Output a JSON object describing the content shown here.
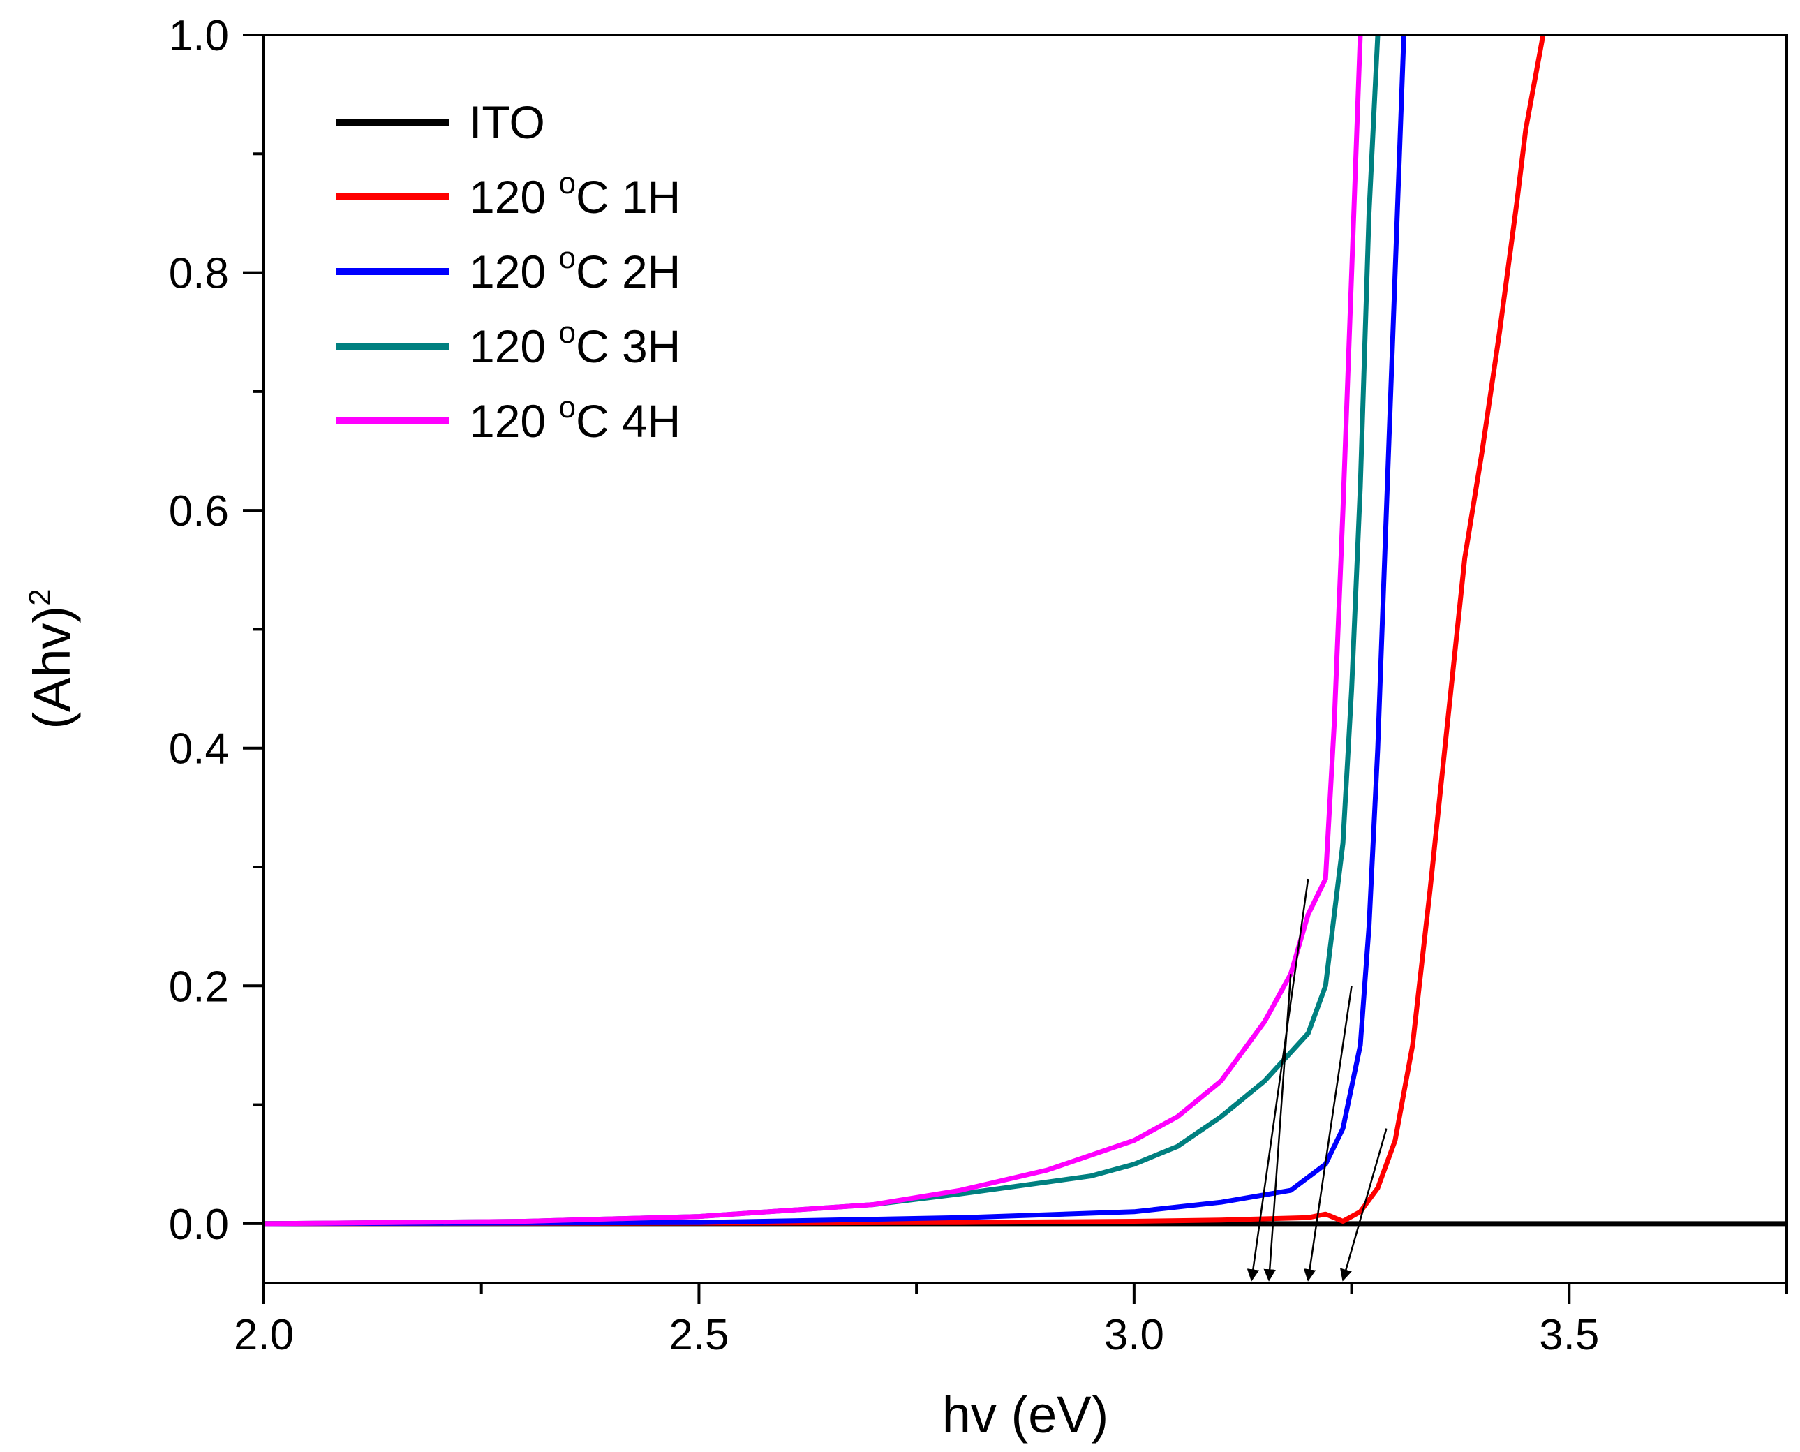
{
  "chart_data": {
    "type": "line",
    "title": "",
    "xlabel": "hv (eV)",
    "ylabel": "(Ahv)",
    "ylabel_superscript": "2",
    "xlim": [
      2.0,
      3.75
    ],
    "ylim": [
      -0.05,
      1.0
    ],
    "xticks": [
      {
        "value": 2.0,
        "label": "2.0"
      },
      {
        "value": 2.5,
        "label": "2.5"
      },
      {
        "value": 3.0,
        "label": "3.0"
      },
      {
        "value": 3.5,
        "label": "3.5"
      }
    ],
    "yticks": [
      {
        "value": 0.0,
        "label": "0.0"
      },
      {
        "value": 0.2,
        "label": "0.2"
      },
      {
        "value": 0.4,
        "label": "0.4"
      },
      {
        "value": 0.6,
        "label": "0.6"
      },
      {
        "value": 0.8,
        "label": "0.8"
      },
      {
        "value": 1.0,
        "label": "1.0"
      }
    ],
    "x_minor_ticks": [
      2.25,
      2.75,
      3.25,
      3.75
    ],
    "y_minor_ticks": [
      0.1,
      0.3,
      0.5,
      0.7,
      0.9
    ],
    "legend_position": "top-left",
    "series": [
      {
        "name": "ITO",
        "label_prefix": "ITO",
        "label_unit": "",
        "label_suffix": "",
        "color": "#000000",
        "points": [
          [
            2.0,
            0.0
          ],
          [
            3.2,
            0.0
          ],
          [
            3.75,
            0.0
          ]
        ]
      },
      {
        "name": "120 °C 1H",
        "label_prefix": "120 ",
        "label_unit": "o",
        "label_suffix": "C 1H",
        "color": "#ff0000",
        "points": [
          [
            2.0,
            0.0
          ],
          [
            2.5,
            0.0005
          ],
          [
            2.8,
            0.001
          ],
          [
            3.0,
            0.002
          ],
          [
            3.1,
            0.003
          ],
          [
            3.2,
            0.005
          ],
          [
            3.22,
            0.008
          ],
          [
            3.24,
            0.002
          ],
          [
            3.26,
            0.01
          ],
          [
            3.28,
            0.03
          ],
          [
            3.3,
            0.07
          ],
          [
            3.32,
            0.15
          ],
          [
            3.34,
            0.28
          ],
          [
            3.36,
            0.42
          ],
          [
            3.38,
            0.56
          ],
          [
            3.4,
            0.65
          ],
          [
            3.42,
            0.75
          ],
          [
            3.44,
            0.86
          ],
          [
            3.45,
            0.92
          ],
          [
            3.47,
            1.0
          ]
        ]
      },
      {
        "name": "120 °C 2H",
        "label_prefix": "120 ",
        "label_unit": "o",
        "label_suffix": "C 2H",
        "color": "#0000ff",
        "points": [
          [
            2.0,
            0.0
          ],
          [
            2.5,
            0.001
          ],
          [
            2.8,
            0.005
          ],
          [
            3.0,
            0.01
          ],
          [
            3.1,
            0.018
          ],
          [
            3.18,
            0.028
          ],
          [
            3.22,
            0.05
          ],
          [
            3.24,
            0.08
          ],
          [
            3.26,
            0.15
          ],
          [
            3.27,
            0.25
          ],
          [
            3.28,
            0.4
          ],
          [
            3.29,
            0.6
          ],
          [
            3.3,
            0.8
          ],
          [
            3.31,
            1.0
          ]
        ]
      },
      {
        "name": "120 °C 3H",
        "label_prefix": "120 ",
        "label_unit": "o",
        "label_suffix": "C 3H",
        "color": "#008080",
        "points": [
          [
            2.0,
            0.0
          ],
          [
            2.3,
            0.002
          ],
          [
            2.5,
            0.006
          ],
          [
            2.7,
            0.016
          ],
          [
            2.8,
            0.025
          ],
          [
            2.9,
            0.035
          ],
          [
            2.95,
            0.04
          ],
          [
            3.0,
            0.05
          ],
          [
            3.05,
            0.065
          ],
          [
            3.1,
            0.09
          ],
          [
            3.15,
            0.12
          ],
          [
            3.2,
            0.16
          ],
          [
            3.22,
            0.2
          ],
          [
            3.24,
            0.32
          ],
          [
            3.25,
            0.45
          ],
          [
            3.26,
            0.62
          ],
          [
            3.27,
            0.85
          ],
          [
            3.28,
            1.0
          ]
        ]
      },
      {
        "name": "120 °C 4H",
        "label_prefix": "120 ",
        "label_unit": "o",
        "label_suffix": "C 4H",
        "color": "#ff00ff",
        "points": [
          [
            2.0,
            0.0
          ],
          [
            2.3,
            0.002
          ],
          [
            2.5,
            0.006
          ],
          [
            2.7,
            0.016
          ],
          [
            2.8,
            0.028
          ],
          [
            2.9,
            0.045
          ],
          [
            3.0,
            0.07
          ],
          [
            3.05,
            0.09
          ],
          [
            3.1,
            0.12
          ],
          [
            3.15,
            0.17
          ],
          [
            3.18,
            0.21
          ],
          [
            3.2,
            0.26
          ],
          [
            3.22,
            0.29
          ],
          [
            3.23,
            0.42
          ],
          [
            3.24,
            0.6
          ],
          [
            3.25,
            0.8
          ],
          [
            3.26,
            1.0
          ]
        ]
      }
    ],
    "annotations": {
      "type": "arrows",
      "description": "tangent extrapolation lines to the x-axis",
      "arrows": [
        {
          "from": [
            3.2,
            0.29
          ],
          "to": [
            3.135,
            -0.05
          ]
        },
        {
          "from": [
            3.18,
            0.21
          ],
          "to": [
            3.155,
            -0.05
          ]
        },
        {
          "from": [
            3.25,
            0.2
          ],
          "to": [
            3.2,
            -0.05
          ]
        },
        {
          "from": [
            3.29,
            0.08
          ],
          "to": [
            3.24,
            -0.05
          ]
        }
      ]
    }
  }
}
